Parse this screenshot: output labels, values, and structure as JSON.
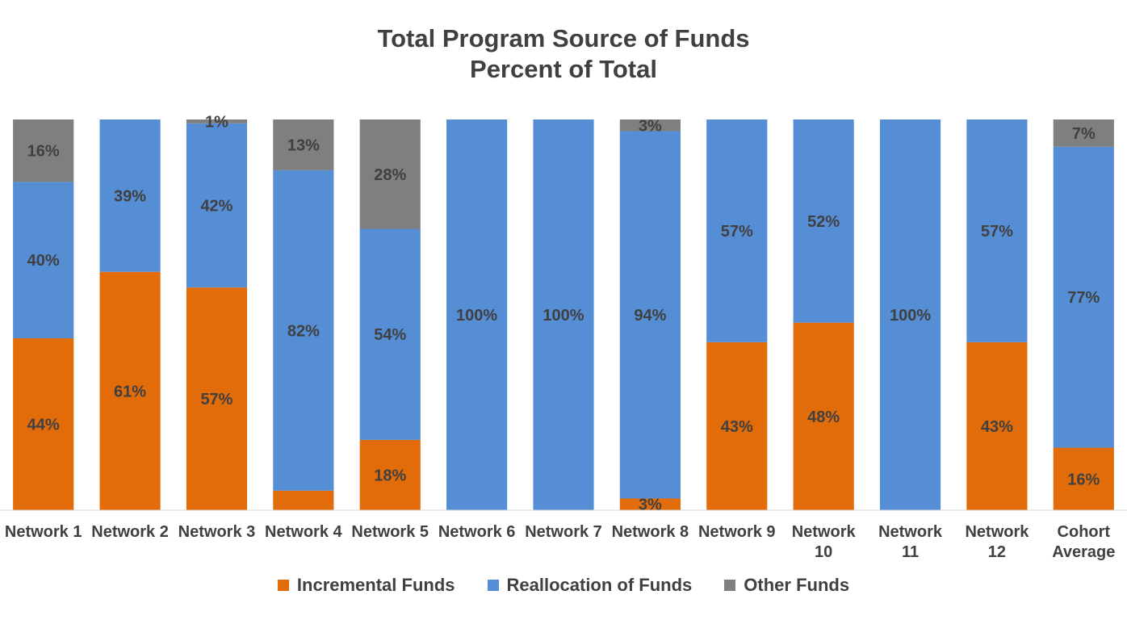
{
  "chart_data": {
    "type": "bar",
    "stacked": true,
    "title": "Total Program Source of Funds",
    "subtitle": "Percent of Total",
    "categories": [
      [
        "Network 1"
      ],
      [
        "Network 2"
      ],
      [
        "Network 3"
      ],
      [
        "Network 4"
      ],
      [
        "Network 5"
      ],
      [
        "Network 6"
      ],
      [
        "Network 7"
      ],
      [
        "Network 8"
      ],
      [
        "Network 9"
      ],
      [
        "Network",
        "10"
      ],
      [
        "Network",
        "11"
      ],
      [
        "Network",
        "12"
      ],
      [
        "Cohort",
        "Average"
      ]
    ],
    "series": [
      {
        "name": "Incremental Funds",
        "color": "#E36C0A",
        "values": [
          44,
          61,
          57,
          5,
          18,
          0,
          0,
          3,
          43,
          48,
          0,
          43,
          16
        ],
        "labels": [
          "44%",
          "61%",
          "57%",
          "",
          "18%",
          "",
          "",
          "3%",
          "43%",
          "48%",
          "",
          "43%",
          "16%"
        ]
      },
      {
        "name": "Reallocation of Funds",
        "color": "#558ED5",
        "values": [
          40,
          39,
          42,
          82,
          54,
          100,
          100,
          94,
          57,
          52,
          100,
          57,
          77
        ],
        "labels": [
          "40%",
          "39%",
          "42%",
          "82%",
          "54%",
          "100%",
          "100%",
          "94%",
          "57%",
          "52%",
          "100%",
          "57%",
          "77%"
        ]
      },
      {
        "name": "Other Funds",
        "color": "#7F7F7F",
        "values": [
          16,
          0,
          1,
          13,
          28,
          0,
          0,
          3,
          0,
          0,
          0,
          0,
          7
        ],
        "labels": [
          "16%",
          "",
          "1%",
          "13%",
          "28%",
          "",
          "",
          "3%",
          "",
          "",
          "",
          "",
          "7%"
        ]
      }
    ],
    "ylim": [
      0,
      100
    ],
    "grid": false,
    "legend_position": "bottom"
  }
}
